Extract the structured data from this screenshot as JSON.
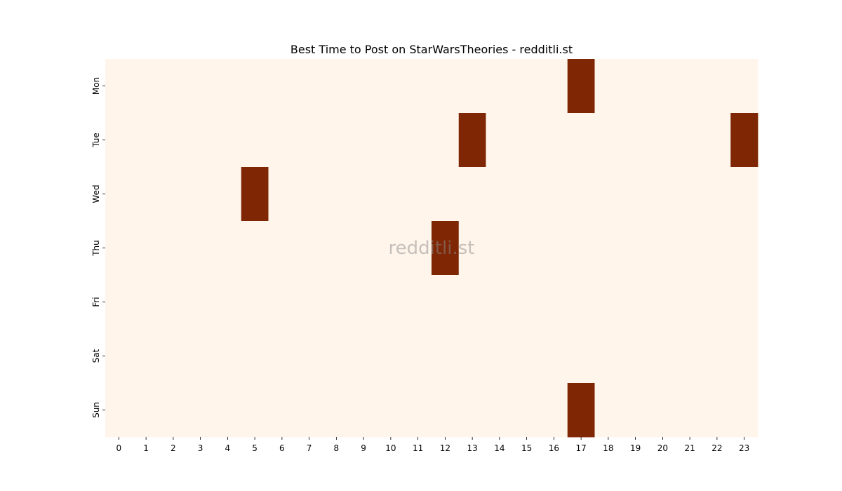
{
  "chart_data": {
    "type": "heatmap",
    "title": "Best Time to Post on StarWarsTheories - redditli.st",
    "watermark": "redditli.st",
    "x": [
      "0",
      "1",
      "2",
      "3",
      "4",
      "5",
      "6",
      "7",
      "8",
      "9",
      "10",
      "11",
      "12",
      "13",
      "14",
      "15",
      "16",
      "17",
      "18",
      "19",
      "20",
      "21",
      "22",
      "23"
    ],
    "y": [
      "Mon",
      "Tue",
      "Wed",
      "Thu",
      "Fri",
      "Sat",
      "Sun"
    ],
    "values": [
      [
        0,
        0,
        0,
        0,
        0,
        0,
        0,
        0,
        0,
        0,
        0,
        0,
        0,
        0,
        0,
        0,
        0,
        1,
        0,
        0,
        0,
        0,
        0,
        0
      ],
      [
        0,
        0,
        0,
        0,
        0,
        0,
        0,
        0,
        0,
        0,
        0,
        0,
        0,
        1,
        0,
        0,
        0,
        0,
        0,
        0,
        0,
        0,
        0,
        1
      ],
      [
        0,
        0,
        0,
        0,
        0,
        1,
        0,
        0,
        0,
        0,
        0,
        0,
        0,
        0,
        0,
        0,
        0,
        0,
        0,
        0,
        0,
        0,
        0,
        0
      ],
      [
        0,
        0,
        0,
        0,
        0,
        0,
        0,
        0,
        0,
        0,
        0,
        0,
        1,
        0,
        0,
        0,
        0,
        0,
        0,
        0,
        0,
        0,
        0,
        0
      ],
      [
        0,
        0,
        0,
        0,
        0,
        0,
        0,
        0,
        0,
        0,
        0,
        0,
        0,
        0,
        0,
        0,
        0,
        0,
        0,
        0,
        0,
        0,
        0,
        0
      ],
      [
        0,
        0,
        0,
        0,
        0,
        0,
        0,
        0,
        0,
        0,
        0,
        0,
        0,
        0,
        0,
        0,
        0,
        0,
        0,
        0,
        0,
        0,
        0,
        0
      ],
      [
        0,
        0,
        0,
        0,
        0,
        0,
        0,
        0,
        0,
        0,
        0,
        0,
        0,
        0,
        0,
        0,
        0,
        1,
        0,
        0,
        0,
        0,
        0,
        0
      ]
    ],
    "colors": {
      "low": "#fff5eb",
      "high": "#7f2704"
    },
    "grid": false,
    "legend": "none"
  }
}
